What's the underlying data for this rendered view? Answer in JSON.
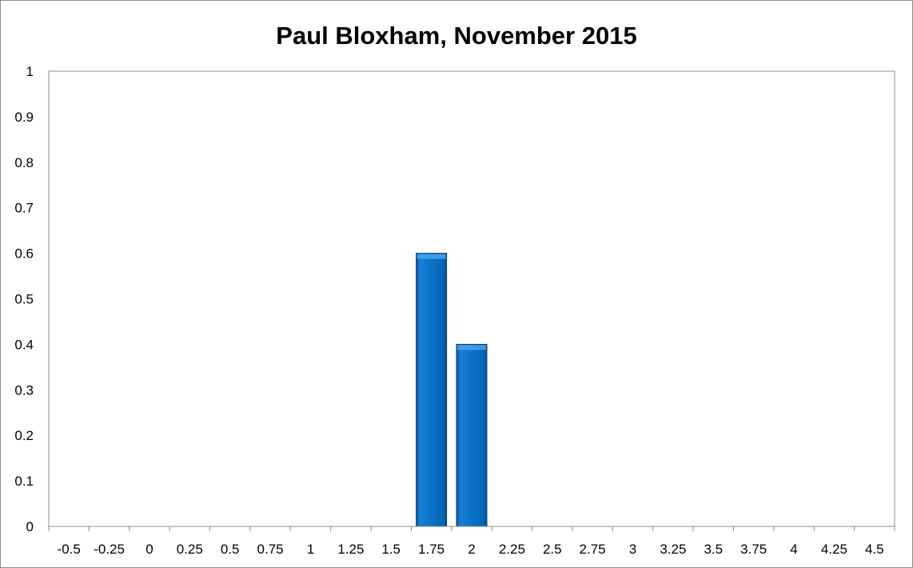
{
  "chart_data": {
    "type": "bar",
    "title": "Paul Bloxham, November 2015",
    "xlabel": "",
    "ylabel": "",
    "categories": [
      "-0.5",
      "-0.25",
      "0",
      "0.25",
      "0.5",
      "0.75",
      "1",
      "1.25",
      "1.5",
      "1.75",
      "2",
      "2.25",
      "2.5",
      "2.75",
      "3",
      "3.25",
      "3.5",
      "3.75",
      "4",
      "4.25",
      "4.5"
    ],
    "values": [
      0,
      0,
      0,
      0,
      0,
      0,
      0,
      0,
      0,
      0.6,
      0.4,
      0,
      0,
      0,
      0,
      0,
      0,
      0,
      0,
      0,
      0
    ],
    "ylim": [
      0,
      1
    ],
    "yticks": [
      "0",
      "0.1",
      "0.2",
      "0.3",
      "0.4",
      "0.5",
      "0.6",
      "0.7",
      "0.8",
      "0.9",
      "1"
    ],
    "grid": false,
    "legend": "none",
    "bar_color": "#0070c8"
  }
}
